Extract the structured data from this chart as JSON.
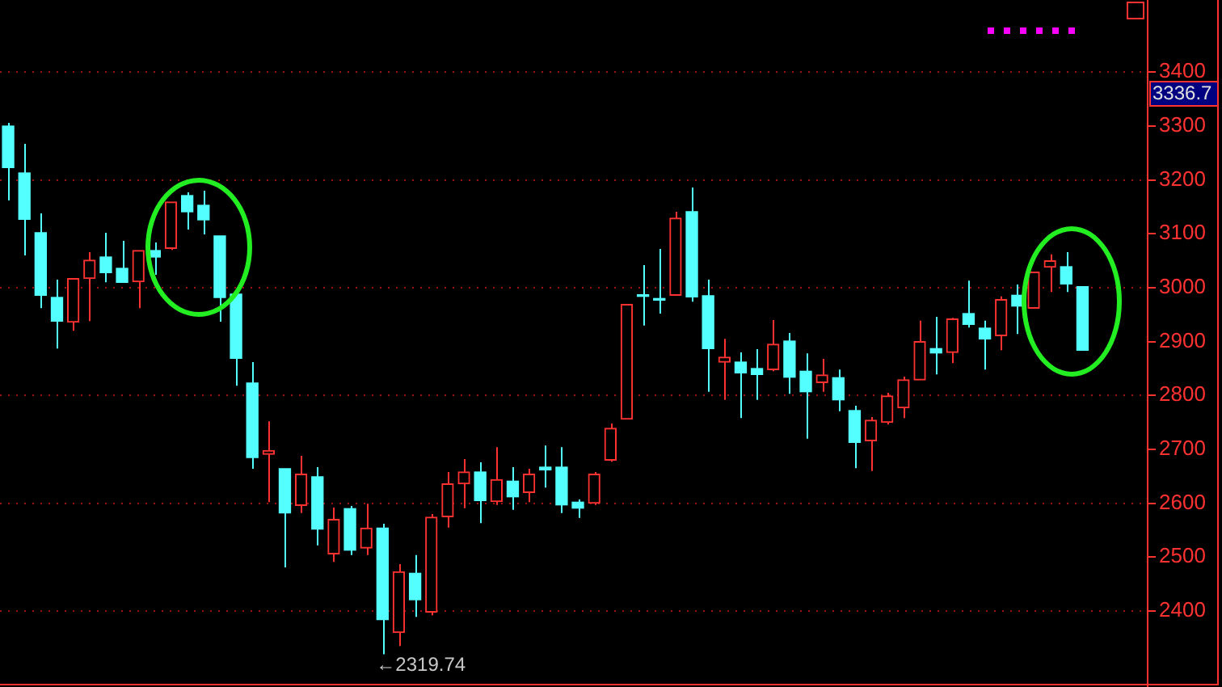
{
  "chart_data": {
    "type": "candlestick",
    "categories": [
      null,
      null,
      null,
      null,
      null,
      null,
      null,
      null,
      null,
      null,
      null,
      null,
      null,
      null,
      null,
      null,
      null,
      null,
      null,
      null,
      null,
      null,
      null,
      null,
      null,
      null,
      null,
      null,
      null,
      null,
      null,
      null,
      null,
      null,
      null,
      null,
      null,
      null,
      null,
      null,
      null,
      null,
      null,
      null,
      null,
      null,
      null,
      null,
      null,
      null,
      null,
      null,
      null,
      null,
      null,
      null,
      null,
      null,
      null,
      null,
      null,
      null,
      null,
      null,
      null,
      null,
      null
    ],
    "ohlc": [
      [
        3300,
        3306,
        3162,
        3223
      ],
      [
        3213,
        3267,
        3060,
        3127
      ],
      [
        3102,
        3138,
        2962,
        2986
      ],
      [
        2982,
        3015,
        2887,
        2938
      ],
      [
        2936,
        3017,
        2920,
        3017
      ],
      [
        3017,
        3066,
        2938,
        3051
      ],
      [
        3057,
        3102,
        3010,
        3028
      ],
      [
        3036,
        3087,
        3010,
        3010
      ],
      [
        3011,
        3069,
        2962,
        3069
      ],
      [
        3069,
        3084,
        3024,
        3057
      ],
      [
        3073,
        3159,
        3070,
        3159
      ],
      [
        3171,
        3177,
        3108,
        3141
      ],
      [
        3153,
        3180,
        3099,
        3126
      ],
      [
        3096,
        3096,
        2937,
        2982
      ],
      [
        2988,
        2988,
        2818,
        2869
      ],
      [
        2823,
        2862,
        2664,
        2685
      ],
      [
        2691,
        2752,
        2602,
        2698
      ],
      [
        2664,
        2664,
        2481,
        2582
      ],
      [
        2596,
        2688,
        2582,
        2654
      ],
      [
        2649,
        2667,
        2522,
        2552
      ],
      [
        2506,
        2592,
        2491,
        2570
      ],
      [
        2590,
        2595,
        2504,
        2513
      ],
      [
        2517,
        2599,
        2504,
        2554
      ],
      [
        2554,
        2562,
        2319.74,
        2384
      ],
      [
        2360,
        2487,
        2335,
        2473
      ],
      [
        2470,
        2504,
        2389,
        2421
      ],
      [
        2398,
        2580,
        2392,
        2574
      ],
      [
        2575,
        2658,
        2555,
        2636
      ],
      [
        2636,
        2682,
        2591,
        2658
      ],
      [
        2658,
        2676,
        2563,
        2605
      ],
      [
        2603,
        2704,
        2597,
        2644
      ],
      [
        2641,
        2667,
        2588,
        2612
      ],
      [
        2620,
        2664,
        2602,
        2654
      ],
      [
        2667,
        2707,
        2629,
        2662
      ],
      [
        2667,
        2704,
        2582,
        2597
      ],
      [
        2602,
        2607,
        2573,
        2591
      ],
      [
        2600,
        2658,
        2597,
        2654
      ],
      [
        2680,
        2748,
        2677,
        2739
      ],
      [
        2756,
        2969,
        2756,
        2969
      ],
      [
        2986,
        3042,
        2930,
        2984
      ],
      [
        2979,
        3072,
        2952,
        2977
      ],
      [
        2986,
        3141,
        2986,
        3129
      ],
      [
        3141,
        3186,
        2974,
        2983
      ],
      [
        2985,
        3015,
        2807,
        2887
      ],
      [
        2862,
        2905,
        2792,
        2871
      ],
      [
        2862,
        2880,
        2758,
        2842
      ],
      [
        2850,
        2886,
        2792,
        2839
      ],
      [
        2848,
        2940,
        2845,
        2895
      ],
      [
        2901,
        2916,
        2803,
        2834
      ],
      [
        2845,
        2878,
        2720,
        2807
      ],
      [
        2824,
        2868,
        2807,
        2838
      ],
      [
        2833,
        2848,
        2771,
        2792
      ],
      [
        2772,
        2781,
        2665,
        2713
      ],
      [
        2716,
        2760,
        2660,
        2754
      ],
      [
        2750,
        2805,
        2746,
        2799
      ],
      [
        2777,
        2835,
        2758,
        2829
      ],
      [
        2829,
        2939,
        2829,
        2900
      ],
      [
        2887,
        2946,
        2839,
        2879
      ],
      [
        2880,
        2944,
        2860,
        2942
      ],
      [
        2952,
        3013,
        2926,
        2932
      ],
      [
        2925,
        2939,
        2848,
        2905
      ],
      [
        2911,
        2984,
        2884,
        2978
      ],
      [
        2986,
        3006,
        2914,
        2966
      ],
      [
        2962,
        3029,
        2962,
        3029
      ],
      [
        3038,
        3062,
        2992,
        3050
      ],
      [
        3039,
        3066,
        2992,
        3007
      ],
      [
        3002,
        3002,
        2884,
        2884
      ]
    ],
    "colors": [
      "#54ffff",
      "#54ffff",
      "#54ffff",
      "#54ffff",
      "#ff3232",
      "#ff3232",
      "#54ffff",
      "#54ffff",
      "#ff3232",
      "#54ffff",
      "#ff3232",
      "#54ffff",
      "#54ffff",
      "#54ffff",
      "#54ffff",
      "#54ffff",
      "#ff3232",
      "#54ffff",
      "#ff3232",
      "#54ffff",
      "#ff3232",
      "#54ffff",
      "#ff3232",
      "#54ffff",
      "#ff3232",
      "#54ffff",
      "#ff3232",
      "#ff3232",
      "#ff3232",
      "#54ffff",
      "#ff3232",
      "#54ffff",
      "#ff3232",
      "#54ffff",
      "#54ffff",
      "#54ffff",
      "#ff3232",
      "#ff3232",
      "#ff3232",
      "#54ffff",
      "#54ffff",
      "#ff3232",
      "#54ffff",
      "#54ffff",
      "#ff3232",
      "#54ffff",
      "#54ffff",
      "#ff3232",
      "#54ffff",
      "#54ffff",
      "#ff3232",
      "#54ffff",
      "#54ffff",
      "#ff3232",
      "#ff3232",
      "#ff3232",
      "#ff3232",
      "#54ffff",
      "#ff3232",
      "#54ffff",
      "#54ffff",
      "#ff3232",
      "#54ffff",
      "#ff3232",
      "#ff3232",
      "#54ffff",
      "#54ffff"
    ],
    "ylim": [
      2259,
      3534
    ],
    "yticks": [
      2400,
      2500,
      2600,
      2700,
      2800,
      2900,
      3000,
      3100,
      3200,
      3300,
      3400
    ],
    "grid": "y",
    "legend": false,
    "annotations": [
      "←2319.74",
      "3336.7"
    ]
  }
}
